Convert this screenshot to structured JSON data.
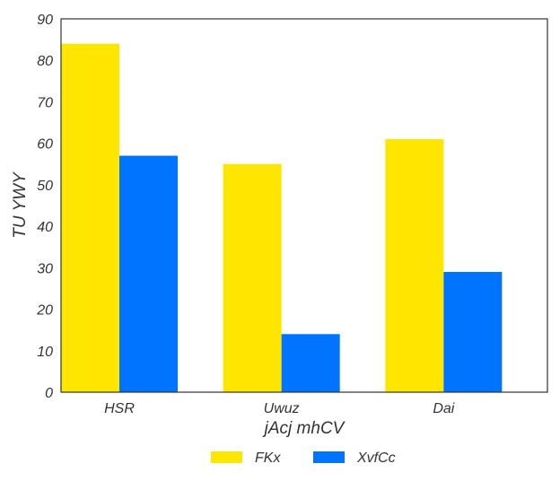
{
  "chart_data": {
    "type": "bar",
    "title": "",
    "xlabel": "jAcj mhCV",
    "ylabel": "TU YWY",
    "categories": [
      "HSR",
      "Uwuz",
      "Dai"
    ],
    "series": [
      {
        "name": "FKx",
        "values": [
          84,
          55,
          61
        ],
        "color": "#FFE600"
      },
      {
        "name": "XvfCc",
        "values": [
          57,
          14,
          29
        ],
        "color": "#0073FF"
      }
    ],
    "ylim": [
      0,
      90
    ],
    "yticks": [
      0,
      10,
      20,
      30,
      40,
      50,
      60,
      70,
      80,
      90
    ],
    "grid": false,
    "legend_position": "bottom-center"
  }
}
